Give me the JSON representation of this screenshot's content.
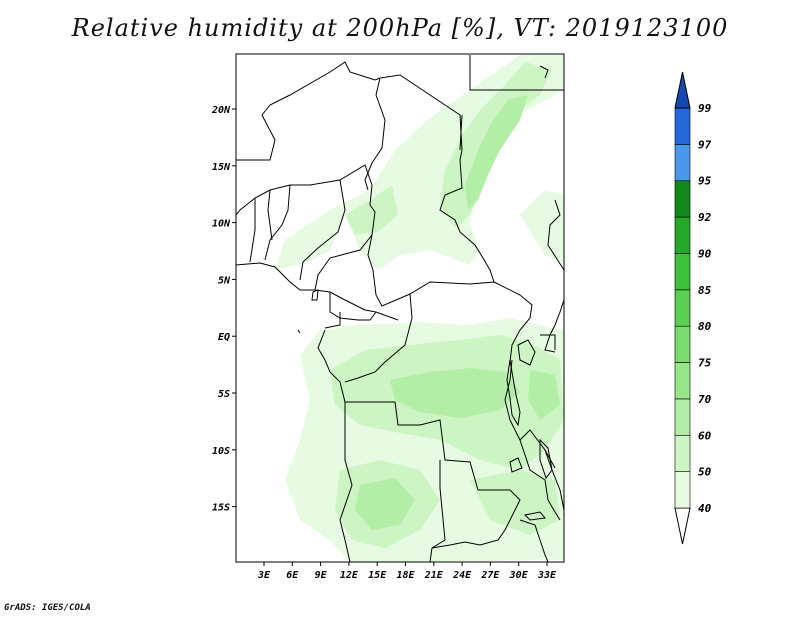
{
  "title": "Relative humidity at 200hPa [%], VT: 2019123100",
  "credit": "GrADS: IGES/COLA",
  "map": {
    "lat_labels": [
      "20N",
      "15N",
      "10N",
      "5N",
      "EQ",
      "5S",
      "10S",
      "15S"
    ],
    "lon_labels": [
      "3E",
      "6E",
      "9E",
      "12E",
      "15E",
      "18E",
      "21E",
      "24E",
      "27E",
      "30E",
      "33E"
    ]
  },
  "colorbar": {
    "levels": [
      "40",
      "50",
      "60",
      "70",
      "75",
      "80",
      "85",
      "90",
      "92",
      "95",
      "97",
      "99"
    ],
    "colors": [
      "#ffffff",
      "#e6fbe2",
      "#cdf5c4",
      "#b3eea6",
      "#98e68a",
      "#7bdc6e",
      "#5acf52",
      "#3ec23c",
      "#23a827",
      "#10881b",
      "#4a97ee",
      "#2468d8",
      "#1648b0"
    ]
  },
  "colors": {
    "rh_low": "#e6fbe2",
    "rh_mid": "#cdf5c4",
    "rh_high": "#b3eea6",
    "borders": "#000000"
  }
}
